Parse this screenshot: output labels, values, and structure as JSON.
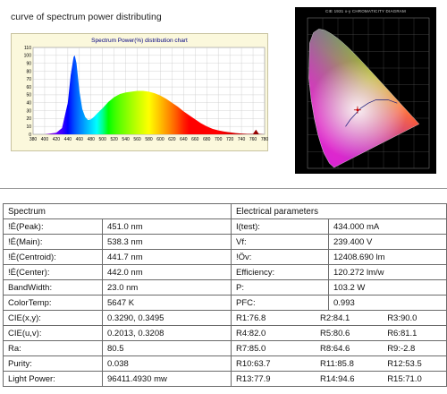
{
  "heading": "curve of spectrum power distributing",
  "chart_data": [
    {
      "type": "area",
      "title": "Spectrum Power(%) distribution chart",
      "xlabel": "",
      "ylabel": "",
      "x": [
        380,
        400,
        420,
        430,
        440,
        445,
        450,
        452,
        455,
        460,
        465,
        470,
        475,
        480,
        485,
        490,
        500,
        510,
        520,
        530,
        540,
        550,
        560,
        570,
        580,
        590,
        600,
        610,
        620,
        630,
        640,
        650,
        660,
        670,
        680,
        690,
        700,
        710,
        720,
        730,
        740,
        750,
        760,
        765,
        770,
        780
      ],
      "y": [
        0,
        0,
        2,
        8,
        40,
        75,
        98,
        100,
        90,
        55,
        32,
        22,
        18,
        19,
        22,
        26,
        33,
        41,
        47,
        51,
        53,
        54,
        55,
        55,
        54,
        52,
        49,
        45,
        40,
        35,
        29,
        24,
        19,
        14,
        10,
        7,
        5,
        3.5,
        2.5,
        1.5,
        1,
        0.5,
        0.5,
        6,
        0.5,
        0
      ],
      "xlim": [
        380,
        780
      ],
      "ylim": [
        0,
        110
      ],
      "xticks": [
        380,
        400,
        420,
        440,
        460,
        480,
        500,
        520,
        540,
        560,
        580,
        600,
        620,
        640,
        660,
        680,
        700,
        720,
        740,
        760,
        780
      ],
      "yticks": [
        0,
        10,
        20,
        30,
        40,
        50,
        60,
        70,
        80,
        90,
        100,
        110
      ],
      "grid": true,
      "fill": "spectral rainbow by wavelength"
    },
    {
      "type": "scatter",
      "title": "CIE 1931 x-y CHROMATICITY DIAGRAM",
      "x": [
        0.329
      ],
      "y": [
        0.3495
      ],
      "xlim": [
        0,
        0.8
      ],
      "ylim": [
        0,
        0.9
      ],
      "grid": true
    }
  ],
  "table": {
    "left_header": "Spectrum",
    "right_header": "Electrical parameters",
    "rows": [
      {
        "l1": "!É(Peak):",
        "l2": "451.0 nm",
        "r1": "I(test):",
        "r2": "434.000 mA"
      },
      {
        "l1": "!É(Main):",
        "l2": "538.3 nm",
        "r1": "Vf:",
        "r2": "239.400 V"
      },
      {
        "l1": "!É(Centroid):",
        "l2": "441.7 nm",
        "r1": "!Öv:",
        "r2": "12408.690 lm"
      },
      {
        "l1": "!É(Center):",
        "l2": "442.0 nm",
        "r1": "Efficiency:",
        "r2": "120.272 lm/w"
      },
      {
        "l1": "BandWidth:",
        "l2": "23.0 nm",
        "r1": "P:",
        "r2": "103.2 W"
      },
      {
        "l1": "ColorTemp:",
        "l2": "5647 K",
        "r1": "PFC:",
        "r2": "0.993"
      }
    ],
    "rrows": [
      {
        "l1": "CIE(x,y):",
        "l2": "0.3290, 0.3495",
        "a": "R1:76.8",
        "b": "R2:84.1",
        "c": "R3:90.0"
      },
      {
        "l1": "CIE(u,v):",
        "l2": "0.2013, 0.3208",
        "a": "R4:82.0",
        "b": "R5:80.6",
        "c": "R6:81.1"
      },
      {
        "l1": "Ra:",
        "l2": "80.5",
        "a": "R7:85.0",
        "b": "R8:64.6",
        "c": "R9:-2.8"
      },
      {
        "l1": "Purity:",
        "l2": "0.038",
        "a": "R10:63.7",
        "b": "R11:85.8",
        "c": "R12:53.5"
      },
      {
        "l1": "Light Power:",
        "l2": "96411.4930 mw",
        "a": "R13:77.9",
        "b": "R14:94.6",
        "c": "R15:71.0"
      }
    ]
  }
}
